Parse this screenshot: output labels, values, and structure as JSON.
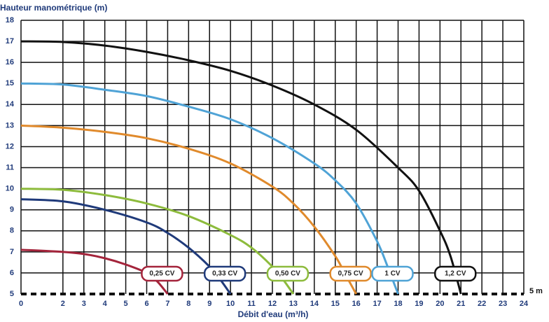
{
  "chart_data": {
    "type": "line",
    "y_label": "Hauteur manométrique (m)",
    "x_label": "Débit d'eau (m³/h)",
    "xlim": [
      0,
      24
    ],
    "ylim": [
      5,
      18
    ],
    "xticks": [
      0,
      2,
      3,
      4,
      5,
      6,
      7,
      8,
      9,
      10,
      11,
      12,
      13,
      14,
      15,
      16,
      17,
      18,
      19,
      20,
      21,
      22,
      23,
      24
    ],
    "yticks": [
      5,
      6,
      7,
      8,
      9,
      10,
      11,
      12,
      13,
      14,
      15,
      16,
      17,
      18
    ],
    "grid": true,
    "reference_line": {
      "value": 5,
      "label": "5 m"
    },
    "series": [
      {
        "name": "0,25 CV",
        "color": "#a4243b",
        "x": [
          0,
          2,
          3,
          4,
          5,
          6,
          6.5,
          7
        ],
        "values": [
          7.1,
          7.0,
          6.9,
          6.7,
          6.4,
          6.0,
          5.6,
          5.0
        ]
      },
      {
        "name": "0,33 CV",
        "color": "#1f3a7a",
        "x": [
          0,
          2,
          4,
          6,
          7,
          8,
          9,
          9.5,
          10
        ],
        "values": [
          9.5,
          9.4,
          9.0,
          8.4,
          7.9,
          7.2,
          6.3,
          5.7,
          5.0
        ]
      },
      {
        "name": "0,50 CV",
        "color": "#8dbb3c",
        "x": [
          0,
          2,
          4,
          6,
          8,
          10,
          11,
          12,
          12.5,
          13
        ],
        "values": [
          10,
          9.95,
          9.7,
          9.3,
          8.7,
          7.8,
          7.2,
          6.3,
          5.7,
          5.0
        ]
      },
      {
        "name": "0,75 CV",
        "color": "#e08a2c",
        "x": [
          0,
          2,
          4,
          6,
          8,
          10,
          12,
          13,
          14,
          15,
          15.5,
          16
        ],
        "values": [
          13,
          12.9,
          12.7,
          12.4,
          11.9,
          11.2,
          10.1,
          9.3,
          8.2,
          6.8,
          5.9,
          5.0
        ]
      },
      {
        "name": "1 CV",
        "color": "#4fa3d6",
        "x": [
          0,
          2,
          4,
          6,
          8,
          10,
          12,
          14,
          15,
          16,
          17,
          17.5,
          18
        ],
        "values": [
          15,
          14.95,
          14.7,
          14.4,
          13.9,
          13.3,
          12.4,
          11.2,
          10.4,
          9.3,
          7.5,
          6.3,
          5.0
        ]
      },
      {
        "name": "1,2 CV",
        "color": "#111111",
        "x": [
          0,
          2,
          4,
          6,
          8,
          10,
          12,
          14,
          16,
          18,
          19,
          20,
          20.5,
          21
        ],
        "values": [
          17,
          16.97,
          16.8,
          16.5,
          16.1,
          15.6,
          14.9,
          14.0,
          12.8,
          11.0,
          9.9,
          8.0,
          6.8,
          5.0
        ]
      }
    ]
  }
}
